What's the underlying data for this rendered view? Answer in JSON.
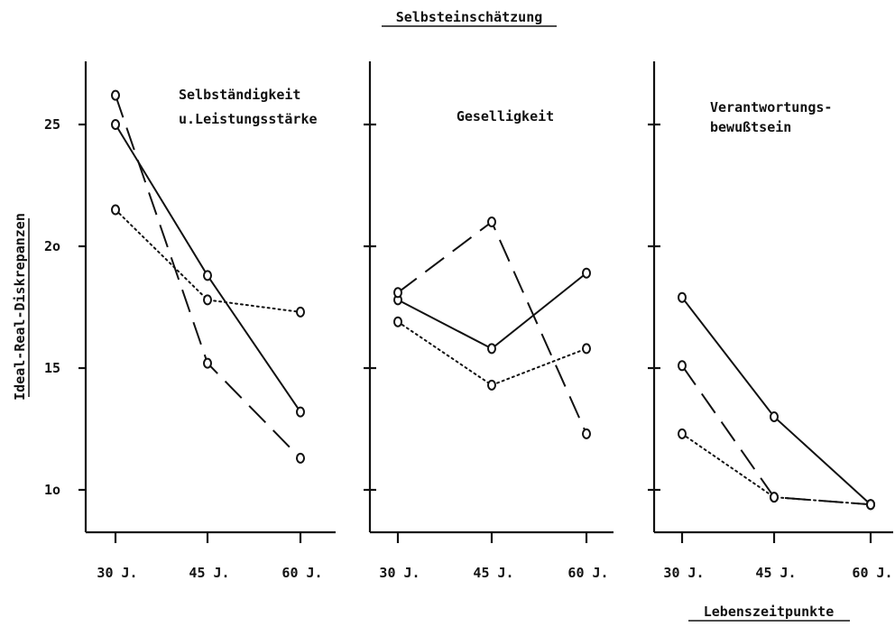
{
  "figure": {
    "title": "Selbsteinschätzung",
    "ylabel": "Ideal-Real-Diskrepanzen",
    "xlabel": "Lebenszeitpunkte"
  },
  "chart_data": [
    {
      "type": "line",
      "title": "Selbständigkeit u.Leistungsstärke",
      "title_lines": [
        "Selbständigkeit",
        "u.Leistungsstärke"
      ],
      "categories": [
        "30 J.",
        "45 J.",
        "60 J."
      ],
      "y_tick_labels": [
        "25",
        "2o",
        "15",
        "1o"
      ],
      "y_ticks": [
        25,
        20,
        15,
        10
      ],
      "ylim": [
        8,
        28
      ],
      "series": [
        {
          "style": "solid",
          "values": [
            25.0,
            18.8,
            13.2
          ]
        },
        {
          "style": "dashed",
          "values": [
            26.2,
            15.2,
            11.3
          ]
        },
        {
          "style": "dotted",
          "values": [
            21.5,
            17.8,
            17.3
          ]
        }
      ]
    },
    {
      "type": "line",
      "title": "Geselligkeit",
      "title_lines": [
        "Geselligkeit"
      ],
      "categories": [
        "30 J.",
        "45 J.",
        "60 J."
      ],
      "y_tick_labels": [],
      "y_ticks": [
        25,
        20,
        15,
        10
      ],
      "ylim": [
        8,
        28
      ],
      "series": [
        {
          "style": "solid",
          "values": [
            17.8,
            15.8,
            18.9
          ]
        },
        {
          "style": "dashed",
          "values": [
            18.1,
            21.0,
            12.3
          ]
        },
        {
          "style": "dotted",
          "values": [
            16.9,
            14.3,
            15.8
          ]
        }
      ]
    },
    {
      "type": "line",
      "title": "Verantwortungsbewußtsein",
      "title_lines": [
        "Verantwortungs-",
        "bewußtsein"
      ],
      "categories": [
        "30 J.",
        "45 J.",
        "60 J."
      ],
      "y_tick_labels": [],
      "y_ticks": [
        25,
        20,
        15,
        10
      ],
      "ylim": [
        8,
        28
      ],
      "series": [
        {
          "style": "solid",
          "values": [
            17.9,
            13.0,
            9.4
          ]
        },
        {
          "style": "dashed",
          "values": [
            15.1,
            9.7,
            9.4
          ]
        },
        {
          "style": "dotted",
          "values": [
            12.3,
            9.7,
            9.4
          ]
        }
      ]
    }
  ]
}
